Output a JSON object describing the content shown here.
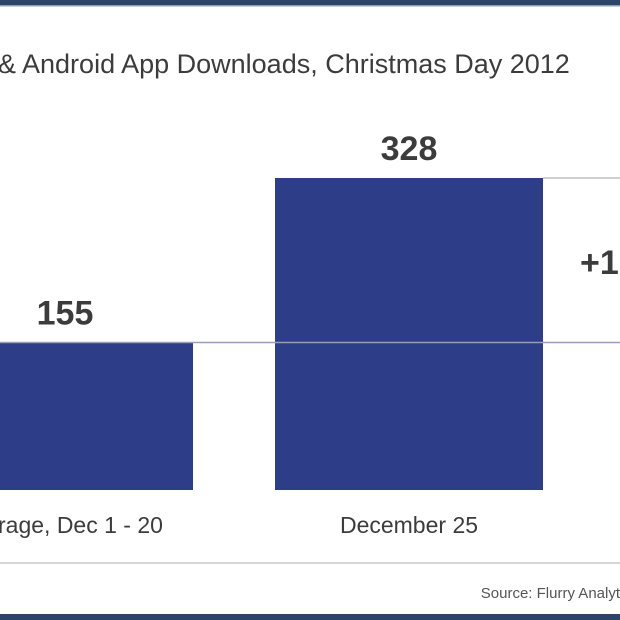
{
  "chart_data": {
    "type": "bar",
    "title": "& Android App Downloads, Christmas Day 2012",
    "categories": [
      "rage, Dec 1 - 20",
      "December 25"
    ],
    "values": [
      155,
      328
    ],
    "data_labels": [
      "155",
      "328"
    ],
    "annotation": "+1",
    "source": "Source: Flurry Analyt",
    "ylim": [
      0,
      328
    ],
    "grid": false,
    "colors": {
      "bar": "#2e3d87",
      "border": "#2c4566",
      "text": "#3c3c3c"
    }
  }
}
